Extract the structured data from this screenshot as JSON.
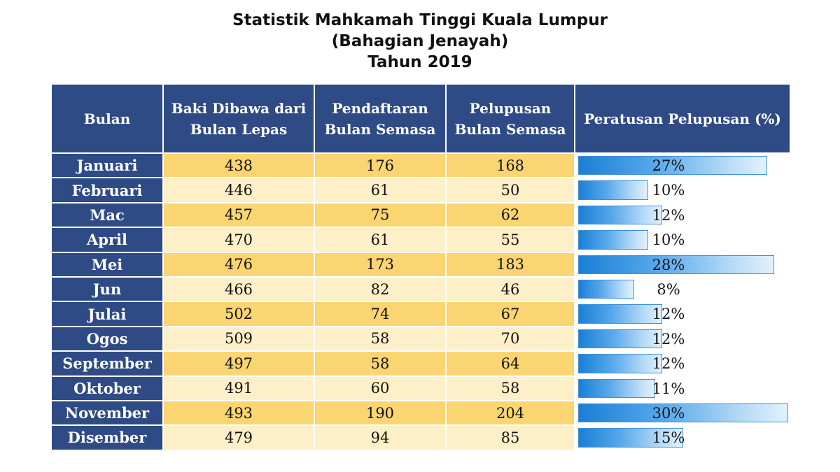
{
  "title": {
    "line1": "Statistik Mahkamah Tinggi Kuala Lumpur",
    "line2": "(Bahagian Jenayah)",
    "line3": "Tahun 2019"
  },
  "table": {
    "headers": {
      "month": "Bulan",
      "backlog": "Baki Dibawa dari Bulan Lepas",
      "registration": "Pendaftaran Bulan Semasa",
      "disposal": "Pelupusan Bulan Semasa",
      "percentage": "Peratusan Pelupusan (%)"
    },
    "rows": [
      {
        "month": "Januari",
        "backlog": "438",
        "registration": "176",
        "disposal": "168",
        "percent_label": "27%",
        "percent_value": 27
      },
      {
        "month": "Februari",
        "backlog": "446",
        "registration": "61",
        "disposal": "50",
        "percent_label": "10%",
        "percent_value": 10
      },
      {
        "month": "Mac",
        "backlog": "457",
        "registration": "75",
        "disposal": "62",
        "percent_label": "12%",
        "percent_value": 12
      },
      {
        "month": "April",
        "backlog": "470",
        "registration": "61",
        "disposal": "55",
        "percent_label": "10%",
        "percent_value": 10
      },
      {
        "month": "Mei",
        "backlog": "476",
        "registration": "173",
        "disposal": "183",
        "percent_label": "28%",
        "percent_value": 28
      },
      {
        "month": "Jun",
        "backlog": "466",
        "registration": "82",
        "disposal": "46",
        "percent_label": "8%",
        "percent_value": 8
      },
      {
        "month": "Julai",
        "backlog": "502",
        "registration": "74",
        "disposal": "67",
        "percent_label": "12%",
        "percent_value": 12
      },
      {
        "month": "Ogos",
        "backlog": "509",
        "registration": "58",
        "disposal": "70",
        "percent_label": "12%",
        "percent_value": 12
      },
      {
        "month": "September",
        "backlog": "497",
        "registration": "58",
        "disposal": "64",
        "percent_label": "12%",
        "percent_value": 12
      },
      {
        "month": "Oktober",
        "backlog": "491",
        "registration": "60",
        "disposal": "58",
        "percent_label": "11%",
        "percent_value": 11
      },
      {
        "month": "November",
        "backlog": "493",
        "registration": "190",
        "disposal": "204",
        "percent_label": "30%",
        "percent_value": 30
      },
      {
        "month": "Disember",
        "backlog": "479",
        "registration": "94",
        "disposal": "85",
        "percent_label": "15%",
        "percent_value": 15
      }
    ]
  },
  "colors": {
    "header_bg": "#2e4b85",
    "row_dark": "#fad572",
    "row_light": "#fdf0c8",
    "bar_blue": "#1a7fd6"
  }
}
